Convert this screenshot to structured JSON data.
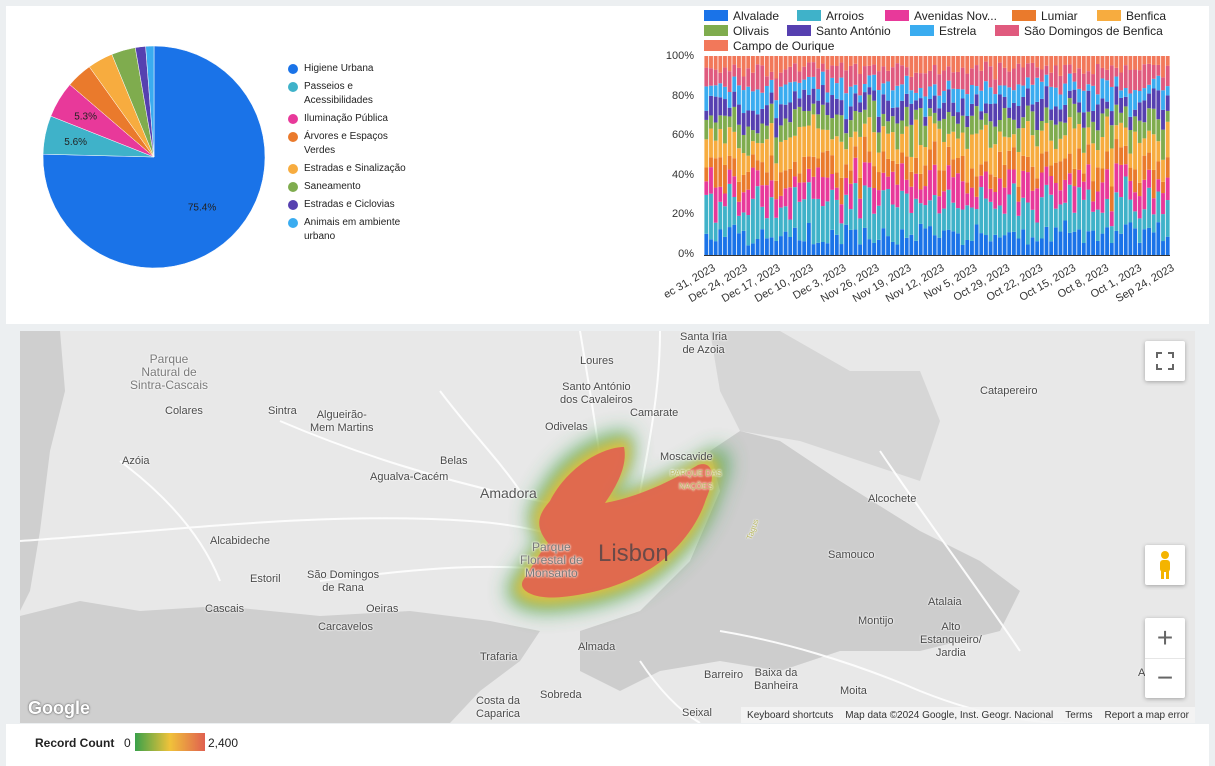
{
  "pie": {
    "chart_data": {
      "type": "pie",
      "slices": [
        {
          "label": "Higiene Urbana",
          "value": 75.4,
          "color": "#1a73e8",
          "data_label": "75.4%"
        },
        {
          "label": "Passeios e Acessibilidades",
          "value": 5.6,
          "color": "#3fb2c9",
          "data_label": "5.6%"
        },
        {
          "label": "Iluminação Pública",
          "value": 5.3,
          "color": "#e8399a",
          "data_label": "5.3%"
        },
        {
          "label": "Árvores e Espaços Verdes",
          "value": 3.8,
          "color": "#ea7a2c",
          "data_label": ""
        },
        {
          "label": "Estradas e Sinalização",
          "value": 3.7,
          "color": "#f7ac3f",
          "data_label": ""
        },
        {
          "label": "Saneamento",
          "value": 3.5,
          "color": "#7fac4e",
          "data_label": ""
        },
        {
          "label": "Estradas e Ciclovias",
          "value": 1.5,
          "color": "#5640b0",
          "data_label": ""
        },
        {
          "label": "Animais em ambiente urbano",
          "value": 1.2,
          "color": "#3aacf0",
          "data_label": ""
        }
      ]
    }
  },
  "stacked": {
    "chart_data": {
      "type": "bar",
      "stacked": true,
      "normalized": true,
      "y_ticks": [
        "100%",
        "80%",
        "60%",
        "40%",
        "20%",
        "0%"
      ],
      "x_ticks": [
        "ec 31, 2023",
        "Dec 24, 2023",
        "Dec 17, 2023",
        "Dec 10, 2023",
        "Dec 3, 2023",
        "Nov 26, 2023",
        "Nov 19, 2023",
        "Nov 12, 2023",
        "Nov 5, 2023",
        "Oct 29, 2023",
        "Oct 22, 2023",
        "Oct 15, 2023",
        "Oct 8, 2023",
        "Oct 1, 2023",
        "Sep 24, 2023"
      ],
      "bar_count": 100,
      "series": [
        {
          "name": "Alvalade",
          "color": "#1a73e8",
          "share": 0.1
        },
        {
          "name": "Arroios",
          "color": "#3fb2c9",
          "share": 0.17
        },
        {
          "name": "Avenidas Nov...",
          "color": "#e8399a",
          "share": 0.11
        },
        {
          "name": "Lumiar",
          "color": "#ea7a2c",
          "share": 0.09
        },
        {
          "name": "Benfica",
          "color": "#f7ac3f",
          "share": 0.14
        },
        {
          "name": "Olivais",
          "color": "#7fac4e",
          "share": 0.09
        },
        {
          "name": "Santo António",
          "color": "#5640b0",
          "share": 0.08
        },
        {
          "name": "Estrela",
          "color": "#3aacf0",
          "share": 0.08
        },
        {
          "name": "São Domingos de Benfica",
          "color": "#e05a7e",
          "share": 0.08
        },
        {
          "name": "Campo de Ourique",
          "color": "#f2785a",
          "share": 0.06
        }
      ]
    }
  },
  "map": {
    "labels": [
      {
        "text": "Santa Iria\nde Azoia",
        "cls": ""
      },
      {
        "text": "Parque\nNatural de\nSintra-Cascais",
        "cls": "park"
      },
      {
        "text": "Loures",
        "cls": ""
      },
      {
        "text": "Santo António\ndos Cavaleiros",
        "cls": ""
      },
      {
        "text": "Camarate",
        "cls": ""
      },
      {
        "text": "Catapereiro",
        "cls": ""
      },
      {
        "text": "Colares",
        "cls": ""
      },
      {
        "text": "Sintra",
        "cls": ""
      },
      {
        "text": "Algueirão-\nMem Martins",
        "cls": ""
      },
      {
        "text": "Odivelas",
        "cls": ""
      },
      {
        "text": "Moscavide",
        "cls": ""
      },
      {
        "text": "PARQUE DAS\nNAÇÕES",
        "cls": "small"
      },
      {
        "text": "Azóia",
        "cls": ""
      },
      {
        "text": "Belas",
        "cls": ""
      },
      {
        "text": "Agualva-Cacém",
        "cls": ""
      },
      {
        "text": "Amadora",
        "cls": "mid"
      },
      {
        "text": "Alcochete",
        "cls": ""
      },
      {
        "text": "Alcabideche",
        "cls": ""
      },
      {
        "text": "Parque\nFlorestal de\nMonsanto",
        "cls": "park"
      },
      {
        "text": "Lisbon",
        "cls": "big"
      },
      {
        "text": "Samouco",
        "cls": ""
      },
      {
        "text": "Estoril",
        "cls": ""
      },
      {
        "text": "São Domingos\nde Rana",
        "cls": ""
      },
      {
        "text": "Montijo",
        "cls": ""
      },
      {
        "text": "Atalaia",
        "cls": ""
      },
      {
        "text": "Cascais",
        "cls": ""
      },
      {
        "text": "Oeiras",
        "cls": ""
      },
      {
        "text": "Carcavelos",
        "cls": ""
      },
      {
        "text": "Alto\nEstanqueiro/\nJardia",
        "cls": ""
      },
      {
        "text": "Almada",
        "cls": ""
      },
      {
        "text": "Trafaria",
        "cls": ""
      },
      {
        "text": "Barreiro",
        "cls": ""
      },
      {
        "text": "Baixa da\nBanheira",
        "cls": ""
      },
      {
        "text": "Moita",
        "cls": ""
      },
      {
        "text": "Sobreda",
        "cls": ""
      },
      {
        "text": "Costa da\nCaparica",
        "cls": ""
      },
      {
        "text": "Seixal",
        "cls": ""
      },
      {
        "text": "A",
        "cls": ""
      },
      {
        "text": "Tagus",
        "cls": "small"
      }
    ],
    "logo": "Google",
    "footer": {
      "shortcuts": "Keyboard shortcuts",
      "data": "Map data ©2024 Google, Inst. Geogr. Nacional",
      "terms": "Terms",
      "report": "Report a map error"
    }
  },
  "heat_legend": {
    "title": "Record Count",
    "min": "0",
    "max": "2,400"
  }
}
